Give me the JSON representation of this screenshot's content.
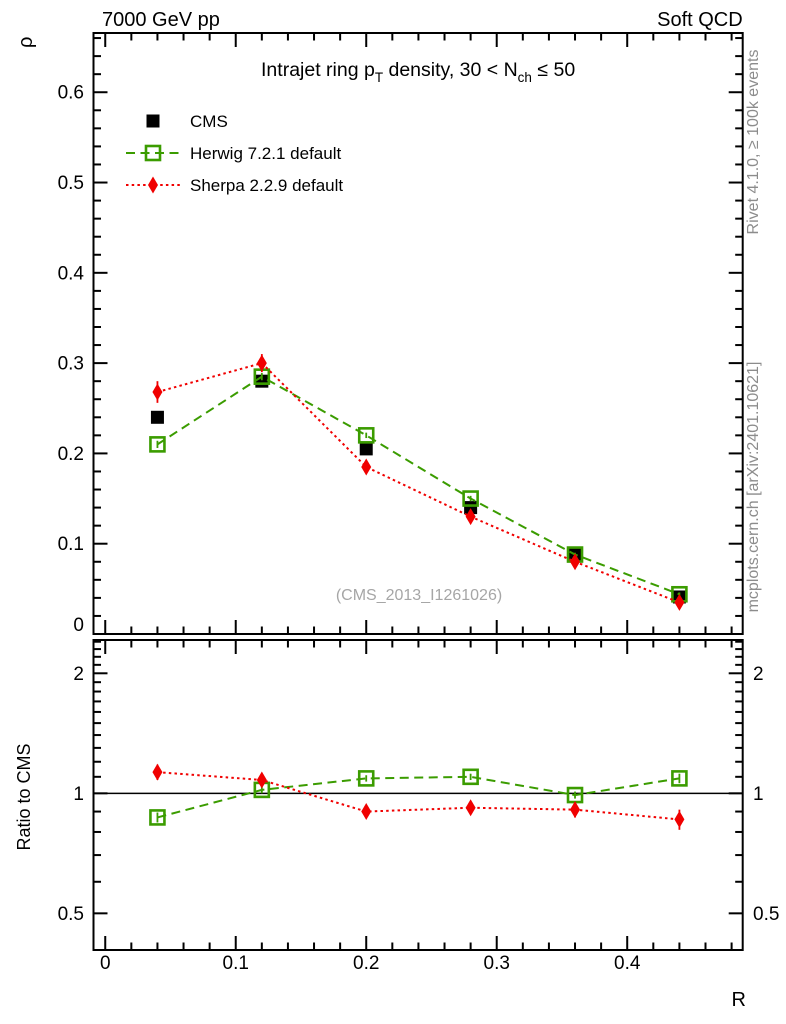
{
  "header": {
    "left": "7000 GeV pp",
    "right": "Soft QCD"
  },
  "titles": {
    "main_parts": [
      {
        "text": "Intrajet ring p",
        "sub": false
      },
      {
        "text": "T",
        "sub": true
      },
      {
        "text": " density, 30 < N",
        "sub": false
      },
      {
        "text": "ch",
        "sub": true
      },
      {
        "text": " ≤ 50",
        "sub": false
      }
    ],
    "y_main": "ρ",
    "y_ratio": "Ratio to CMS",
    "x": "R",
    "watermark": "(CMS_2013_I1261026)"
  },
  "side_notes": {
    "top_right": "Rivet 4.1.0, ≥ 100k events",
    "bottom_right": "mcplots.cern.ch [arXiv:2401.10621]"
  },
  "colors": {
    "cms": "#000000",
    "herwig": "#3b9c00",
    "sherpa": "#f00000",
    "frame": "#000000",
    "side_note": "#8c8c8c",
    "watermark": "#a6a6a6"
  },
  "legend": {
    "items": [
      {
        "label": "CMS"
      },
      {
        "label": "Herwig 7.2.1 default"
      },
      {
        "label": "Sherpa 2.2.9 default"
      }
    ]
  },
  "chart_data": {
    "type": "line",
    "title": "Intrajet ring p_T density, 30 < N_ch <= 50",
    "xlabel": "R",
    "x": [
      0.04,
      0.12,
      0.2,
      0.28,
      0.36,
      0.44
    ],
    "xlim": [
      -0.009,
      0.4885
    ],
    "xticks": {
      "major": [
        0,
        0.1,
        0.2,
        0.3,
        0.4
      ],
      "labels": [
        "0",
        "0.1",
        "0.2",
        "0.3",
        "0.4"
      ],
      "minor_step": 0.02
    },
    "main_panel": {
      "ylabel": "ρ",
      "ylim": [
        0,
        0.6656
      ],
      "yticks": {
        "major": [
          0,
          0.1,
          0.2,
          0.3,
          0.4,
          0.5,
          0.6
        ],
        "labels": [
          "0",
          "0.1",
          "0.2",
          "0.3",
          "0.4",
          "0.5",
          "0.6"
        ],
        "minor_step": 0.02
      },
      "series": [
        {
          "name": "CMS",
          "color": "#000000",
          "marker": "square-filled",
          "line": "none",
          "values": [
            0.24,
            0.28,
            0.205,
            0.14,
            0.088,
            0.041
          ],
          "errors": [
            0.004,
            0.004,
            0.004,
            0.003,
            0.002,
            0.002
          ]
        },
        {
          "name": "Herwig 7.2.1 default",
          "color": "#3b9c00",
          "marker": "square-open",
          "line": "dashed",
          "values": [
            0.21,
            0.285,
            0.22,
            0.15,
            0.088,
            0.044
          ],
          "errors": [
            0.004,
            0.004,
            0.003,
            0.003,
            0.002,
            0.002
          ]
        },
        {
          "name": "Sherpa 2.2.9 default",
          "color": "#f00000",
          "marker": "diamond-filled",
          "line": "dotted",
          "values": [
            0.268,
            0.3,
            0.185,
            0.13,
            0.08,
            0.035
          ],
          "errors": [
            0.012,
            0.01,
            0.005,
            0.004,
            0.004,
            0.003
          ]
        }
      ]
    },
    "ratio_panel": {
      "ylabel": "Ratio to CMS",
      "yscale": "log",
      "ylim": [
        0.4046,
        2.424
      ],
      "reference_line": 1,
      "yticks": {
        "major": [
          2,
          1,
          0.5
        ],
        "labels": [
          "2",
          "1",
          "0.5"
        ]
      },
      "series": [
        {
          "name": "Herwig 7.2.1 default",
          "values": [
            0.87,
            1.02,
            1.09,
            1.1,
            0.99,
            1.09
          ],
          "errors": [
            0.025,
            0.02,
            0.02,
            0.02,
            0.02,
            0.03
          ]
        },
        {
          "name": "Sherpa 2.2.9 default",
          "values": [
            1.13,
            1.08,
            0.9,
            0.92,
            0.91,
            0.86
          ],
          "errors": [
            0.05,
            0.04,
            0.03,
            0.03,
            0.04,
            0.05
          ]
        }
      ]
    }
  }
}
